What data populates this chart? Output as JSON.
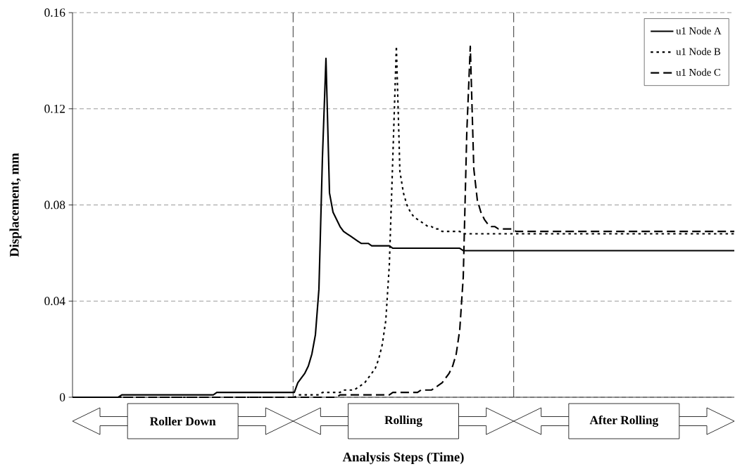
{
  "chart_data": {
    "type": "line",
    "categories": [
      null,
      null,
      null,
      null,
      null,
      null,
      null,
      null,
      null,
      null,
      null,
      null,
      null,
      null,
      null,
      null,
      null,
      null,
      null,
      null,
      null,
      null,
      null,
      null,
      null,
      null,
      null,
      null,
      null,
      null,
      null,
      null,
      null,
      null,
      null,
      null,
      null,
      null,
      null,
      null,
      null,
      null,
      null,
      null,
      null,
      null,
      null,
      null,
      null,
      null,
      null,
      null,
      null,
      null,
      null,
      null,
      null,
      null,
      null,
      null,
      null,
      null,
      null,
      null,
      null,
      null,
      null,
      null,
      null,
      null,
      null,
      null,
      null,
      null,
      null,
      null,
      null,
      null,
      null,
      null,
      null,
      null,
      null,
      null,
      null,
      null,
      null,
      null,
      null,
      null,
      null,
      null,
      null,
      null,
      null,
      null,
      null,
      null,
      null,
      null,
      null,
      null,
      null,
      null,
      null,
      null,
      null,
      null,
      null,
      null,
      null,
      null,
      null,
      null,
      null,
      null,
      null,
      null,
      null,
      null,
      null,
      null,
      null,
      null,
      null,
      null,
      null,
      null,
      null,
      null,
      null,
      null,
      null,
      null,
      null,
      null,
      null,
      null,
      null,
      null,
      null,
      null,
      null,
      null,
      null,
      null,
      null,
      null,
      null,
      null,
      null,
      null,
      null,
      null,
      null,
      null,
      null,
      null,
      null,
      null,
      null,
      null,
      null,
      null,
      null,
      null,
      null,
      null,
      null,
      null,
      null,
      null,
      null,
      null,
      null,
      null,
      null,
      null,
      null,
      null,
      null,
      null,
      null,
      null,
      null,
      null,
      null,
      null,
      null
    ],
    "series": [
      {
        "name": "u1 Node A",
        "color": "#000000",
        "line_style": "solid",
        "values": [
          0,
          0,
          0,
          0,
          0,
          0,
          0,
          0,
          0,
          0,
          0,
          0,
          0,
          0,
          0.001,
          0.001,
          0.001,
          0.001,
          0.001,
          0.001,
          0.001,
          0.001,
          0.001,
          0.001,
          0.001,
          0.001,
          0.001,
          0.001,
          0.001,
          0.001,
          0.001,
          0.001,
          0.001,
          0.001,
          0.001,
          0.001,
          0.001,
          0.001,
          0.001,
          0.001,
          0.001,
          0.002,
          0.002,
          0.002,
          0.002,
          0.002,
          0.002,
          0.002,
          0.002,
          0.002,
          0.002,
          0.002,
          0.002,
          0.002,
          0.002,
          0.002,
          0.002,
          0.002,
          0.002,
          0.002,
          0.002,
          0.002,
          0.002,
          0.002,
          0.006,
          0.008,
          0.01,
          0.013,
          0.018,
          0.026,
          0.045,
          0.1,
          0.141,
          0.085,
          0.077,
          0.074,
          0.071,
          0.069,
          0.068,
          0.067,
          0.066,
          0.065,
          0.064,
          0.064,
          0.064,
          0.063,
          0.063,
          0.063,
          0.063,
          0.063,
          0.063,
          0.062,
          0.062,
          0.062,
          0.062,
          0.062,
          0.062,
          0.062,
          0.062,
          0.062,
          0.062,
          0.062,
          0.062,
          0.062,
          0.062,
          0.062,
          0.062,
          0.062,
          0.062,
          0.062,
          0.062,
          0.061,
          0.061,
          0.061,
          0.061,
          0.061,
          0.061,
          0.061,
          0.061,
          0.061,
          0.061,
          0.061,
          0.061,
          0.061,
          0.061,
          0.061,
          0.061,
          0.061,
          0.061,
          0.061,
          0.061,
          0.061,
          0.061,
          0.061,
          0.061,
          0.061,
          0.061,
          0.061,
          0.061,
          0.061,
          0.061,
          0.061,
          0.061,
          0.061,
          0.061,
          0.061,
          0.061,
          0.061,
          0.061,
          0.061,
          0.061,
          0.061,
          0.061,
          0.061,
          0.061,
          0.061,
          0.061,
          0.061,
          0.061,
          0.061,
          0.061,
          0.061,
          0.061,
          0.061,
          0.061,
          0.061,
          0.061,
          0.061,
          0.061,
          0.061,
          0.061,
          0.061,
          0.061,
          0.061,
          0.061,
          0.061,
          0.061,
          0.061,
          0.061,
          0.061,
          0.061,
          0.061,
          0.061,
          0.061,
          0.061,
          0.061,
          0.061,
          0.061,
          0.061
        ]
      },
      {
        "name": "u1 Node B",
        "color": "#000000",
        "line_style": "dotted",
        "values": [
          0,
          0,
          0,
          0,
          0,
          0,
          0,
          0,
          0,
          0,
          0,
          0,
          0,
          0,
          0,
          0,
          0,
          0,
          0,
          0,
          0,
          0,
          0,
          0,
          0,
          0,
          0,
          0,
          0,
          0,
          0,
          0,
          0,
          0,
          0,
          0,
          0,
          0,
          0,
          0,
          0,
          0,
          0,
          0,
          0,
          0,
          0,
          0,
          0,
          0,
          0,
          0,
          0,
          0,
          0,
          0,
          0,
          0,
          0,
          0,
          0,
          0,
          0,
          0,
          0.001,
          0.001,
          0.001,
          0.001,
          0.001,
          0.001,
          0.001,
          0.002,
          0.002,
          0.002,
          0.002,
          0.002,
          0.002,
          0.003,
          0.003,
          0.003,
          0.003,
          0.004,
          0.005,
          0.006,
          0.008,
          0.01,
          0.012,
          0.016,
          0.022,
          0.032,
          0.055,
          0.1,
          0.146,
          0.094,
          0.085,
          0.08,
          0.077,
          0.075,
          0.074,
          0.073,
          0.072,
          0.071,
          0.071,
          0.07,
          0.07,
          0.069,
          0.069,
          0.069,
          0.069,
          0.069,
          0.069,
          0.068,
          0.068,
          0.068,
          0.068,
          0.068,
          0.068,
          0.068,
          0.068,
          0.068,
          0.068,
          0.068,
          0.068,
          0.068,
          0.068,
          0.068,
          0.068,
          0.068,
          0.068,
          0.068,
          0.068,
          0.068,
          0.068,
          0.068,
          0.068,
          0.068,
          0.068,
          0.068,
          0.068,
          0.068,
          0.068,
          0.068,
          0.068,
          0.068,
          0.068,
          0.068,
          0.068,
          0.068,
          0.068,
          0.068,
          0.068,
          0.068,
          0.068,
          0.068,
          0.068,
          0.068,
          0.068,
          0.068,
          0.068,
          0.068,
          0.068,
          0.068,
          0.068,
          0.068,
          0.068,
          0.068,
          0.068,
          0.068,
          0.068,
          0.068,
          0.068,
          0.068,
          0.068,
          0.068,
          0.068,
          0.068,
          0.068,
          0.068,
          0.068,
          0.068,
          0.068,
          0.068,
          0.068,
          0.068,
          0.068,
          0.068,
          0.068,
          0.068,
          0.068
        ]
      },
      {
        "name": "u1 Node C",
        "color": "#000000",
        "line_style": "dashed",
        "values": [
          0,
          0,
          0,
          0,
          0,
          0,
          0,
          0,
          0,
          0,
          0,
          0,
          0,
          0,
          0,
          0,
          0,
          0,
          0,
          0,
          0,
          0,
          0,
          0,
          0,
          0,
          0,
          0,
          0,
          0,
          0,
          0,
          0,
          0,
          0,
          0,
          0,
          0,
          0,
          0,
          0,
          0,
          0,
          0,
          0,
          0,
          0,
          0,
          0,
          0,
          0,
          0,
          0,
          0,
          0,
          0,
          0,
          0,
          0,
          0,
          0,
          0,
          0,
          0,
          0,
          0,
          0,
          0,
          0,
          0,
          0,
          0,
          0,
          0,
          0,
          0,
          0.001,
          0.001,
          0.001,
          0.001,
          0.001,
          0.001,
          0.001,
          0.001,
          0.001,
          0.001,
          0.001,
          0.001,
          0.001,
          0.001,
          0.001,
          0.002,
          0.002,
          0.002,
          0.002,
          0.002,
          0.002,
          0.002,
          0.002,
          0.003,
          0.003,
          0.003,
          0.003,
          0.004,
          0.005,
          0.006,
          0.008,
          0.01,
          0.013,
          0.018,
          0.028,
          0.05,
          0.11,
          0.146,
          0.095,
          0.082,
          0.077,
          0.074,
          0.072,
          0.071,
          0.071,
          0.07,
          0.07,
          0.07,
          0.07,
          0.07,
          0.069,
          0.069,
          0.069,
          0.069,
          0.069,
          0.069,
          0.069,
          0.069,
          0.069,
          0.069,
          0.069,
          0.069,
          0.069,
          0.069,
          0.069,
          0.069,
          0.069,
          0.069,
          0.069,
          0.069,
          0.069,
          0.069,
          0.069,
          0.069,
          0.069,
          0.069,
          0.069,
          0.069,
          0.069,
          0.069,
          0.069,
          0.069,
          0.069,
          0.069,
          0.069,
          0.069,
          0.069,
          0.069,
          0.069,
          0.069,
          0.069,
          0.069,
          0.069,
          0.069,
          0.069,
          0.069,
          0.069,
          0.069,
          0.069,
          0.069,
          0.069,
          0.069,
          0.069,
          0.069,
          0.069,
          0.069,
          0.069,
          0.069,
          0.069,
          0.069,
          0.069,
          0.069,
          0.069
        ]
      }
    ],
    "xlabel": "Analysis Steps (Time)",
    "ylabel": "Displacement, mm",
    "ylim": [
      0,
      0.16
    ],
    "yticks": [
      0,
      0.04,
      0.08,
      0.12,
      0.16
    ],
    "grid": "y",
    "legend": "top right",
    "annotations": [
      "Roller Down",
      "Rolling",
      "After Rolling"
    ]
  }
}
